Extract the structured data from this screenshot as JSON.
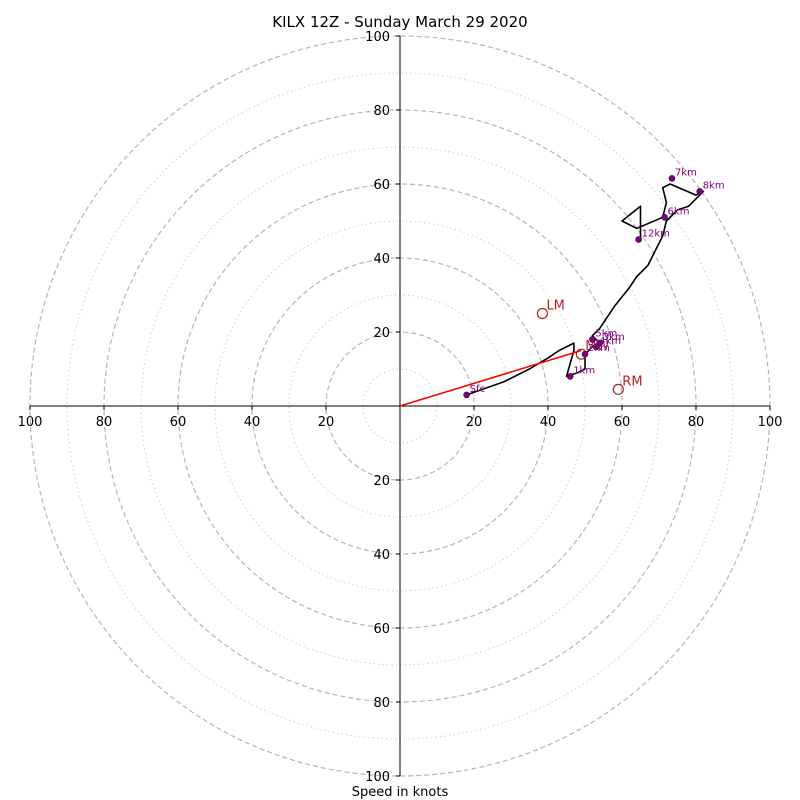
{
  "chart_data": {
    "type": "line",
    "title": "KILX 12Z - Sunday March 29 2020",
    "xlabel": "Speed in knots",
    "ylabel": "",
    "xlim": [
      -100,
      100
    ],
    "ylim": [
      -100,
      100
    ],
    "rings": {
      "major": [
        20,
        40,
        60,
        80,
        100
      ],
      "minor": [
        10,
        30,
        50,
        70,
        90
      ]
    },
    "ticks": {
      "x": [
        {
          "v": -100,
          "label": "100"
        },
        {
          "v": -80,
          "label": "80"
        },
        {
          "v": -60,
          "label": "60"
        },
        {
          "v": -40,
          "label": "40"
        },
        {
          "v": -20,
          "label": "20"
        },
        {
          "v": 20,
          "label": "20"
        },
        {
          "v": 40,
          "label": "40"
        },
        {
          "v": 60,
          "label": "60"
        },
        {
          "v": 80,
          "label": "80"
        },
        {
          "v": 100,
          "label": "100"
        }
      ],
      "y": [
        {
          "v": 100,
          "label": "100"
        },
        {
          "v": 80,
          "label": "80"
        },
        {
          "v": 60,
          "label": "60"
        },
        {
          "v": 40,
          "label": "40"
        },
        {
          "v": 20,
          "label": "20"
        },
        {
          "v": -20,
          "label": "20"
        },
        {
          "v": -40,
          "label": "40"
        },
        {
          "v": -60,
          "label": "60"
        },
        {
          "v": -80,
          "label": "80"
        },
        {
          "v": -100,
          "label": "100"
        }
      ]
    },
    "trace": {
      "color": "#000000",
      "x": [
        18,
        28,
        35,
        40,
        43,
        47,
        47,
        45,
        48,
        50,
        50,
        52,
        54,
        52,
        54,
        58,
        62,
        64,
        67,
        69,
        71,
        72,
        75,
        78,
        82,
        80,
        73,
        71,
        72,
        71,
        64,
        60,
        65,
        65
      ],
      "y": [
        3,
        6.5,
        10,
        13,
        15,
        17,
        15,
        8,
        9,
        10,
        14,
        16,
        17,
        19,
        21,
        27,
        32,
        35,
        38,
        42,
        46,
        50,
        53,
        54,
        58,
        57,
        60,
        59,
        55,
        51,
        48,
        50,
        54,
        45
      ]
    },
    "height_markers": {
      "color": "#800080",
      "points": [
        {
          "label": "Sfc",
          "x": 18,
          "y": 3
        },
        {
          "label": "1km",
          "x": 46,
          "y": 8
        },
        {
          "label": "2km",
          "x": 50,
          "y": 14
        },
        {
          "label": "3km",
          "x": 54,
          "y": 17
        },
        {
          "label": "4km",
          "x": 53,
          "y": 16
        },
        {
          "label": "5km",
          "x": 52,
          "y": 18
        },
        {
          "label": "6km",
          "x": 71.5,
          "y": 51
        },
        {
          "label": "7km",
          "x": 73.5,
          "y": 61.5
        },
        {
          "label": "8km",
          "x": 81,
          "y": 58
        },
        {
          "label": "12km",
          "x": 64.5,
          "y": 45
        }
      ]
    },
    "storm_motion": {
      "color": "#b22222",
      "markers": [
        {
          "label": "LM",
          "x": 38.5,
          "y": 25
        },
        {
          "label": "RM",
          "x": 59,
          "y": 4.5
        },
        {
          "label": "MW",
          "x": 49,
          "y": 14
        }
      ],
      "vector": {
        "x": 49,
        "y": 15
      }
    }
  }
}
